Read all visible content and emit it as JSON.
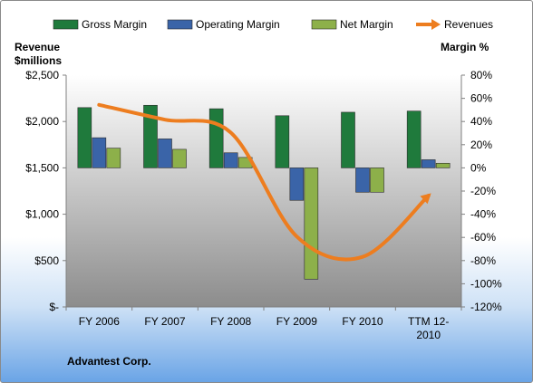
{
  "chart_data": {
    "type": "bar+line",
    "company": "Advantest Corp.",
    "categories": [
      "FY 2006",
      "FY 2007",
      "FY 2008",
      "FY 2009",
      "FY 2010",
      "TTM 12-2010"
    ],
    "category_lines": [
      [
        "FY 2006"
      ],
      [
        "FY 2007"
      ],
      [
        "FY 2008"
      ],
      [
        "FY 2009"
      ],
      [
        "FY 2010"
      ],
      [
        "TTM 12-",
        "2010"
      ]
    ],
    "left_axis": {
      "title_lines": [
        "Revenue",
        "$millions"
      ],
      "ylim": [
        0,
        2500
      ],
      "ticks": [
        0,
        500,
        1000,
        1500,
        2000,
        2500
      ],
      "tick_labels": [
        "$-",
        "$500",
        "$1,000",
        "$1,500",
        "$2,000",
        "$2,500"
      ]
    },
    "right_axis": {
      "title": "Margin %",
      "ylim": [
        -120,
        80
      ],
      "ticks": [
        -120,
        -100,
        -80,
        -60,
        -40,
        -20,
        0,
        20,
        40,
        60,
        80
      ],
      "tick_labels": [
        "-120%",
        "-100%",
        "-80%",
        "-60%",
        "-40%",
        "-20%",
        "0%",
        "20%",
        "40%",
        "60%",
        "80%"
      ]
    },
    "series": [
      {
        "name": "Gross Margin",
        "kind": "bar",
        "axis": "right",
        "color": "#1f7a3c",
        "values": [
          52,
          54,
          51,
          45,
          48,
          49
        ]
      },
      {
        "name": "Operating Margin",
        "kind": "bar",
        "axis": "right",
        "color": "#3a64a8",
        "values": [
          26,
          25,
          13,
          -28,
          -21,
          7
        ]
      },
      {
        "name": "Net Margin",
        "kind": "bar",
        "axis": "right",
        "color": "#8db04a",
        "values": [
          17,
          16,
          9,
          -96,
          -21,
          4
        ]
      },
      {
        "name": "Revenues",
        "kind": "line",
        "axis": "left",
        "color": "#ed7d1f",
        "values": [
          2180,
          2020,
          1880,
          760,
          540,
          1200
        ]
      }
    ],
    "legend_position": "top",
    "grid": false
  }
}
